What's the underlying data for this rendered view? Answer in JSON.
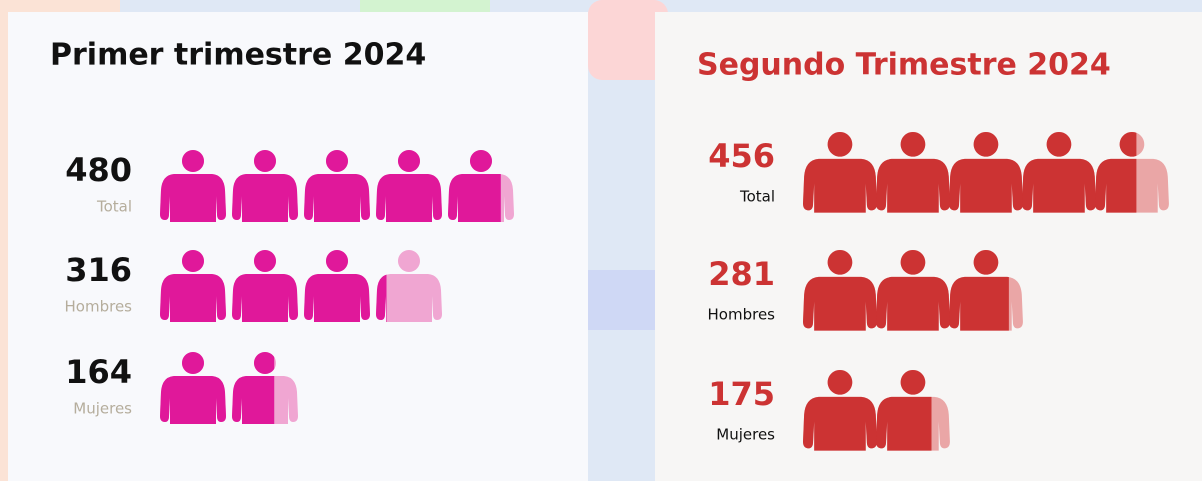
{
  "chart_data": [
    {
      "type": "pictogram",
      "title": "Primer trimestre 2024",
      "categories": [
        "Total",
        "Hombres",
        "Mujeres"
      ],
      "values": [
        480,
        316,
        164
      ],
      "color": "#e0189a",
      "light_color": "#f0a6d2",
      "xlim": [
        0,
        500
      ]
    },
    {
      "type": "pictogram",
      "title": "Segundo Trimestre 2024",
      "categories": [
        "Total",
        "Hombres",
        "Mujeres"
      ],
      "values": [
        456,
        281,
        175
      ],
      "color": "#cc3333",
      "light_color": "#eaa6a6",
      "xlim": [
        0,
        500
      ]
    }
  ]
}
